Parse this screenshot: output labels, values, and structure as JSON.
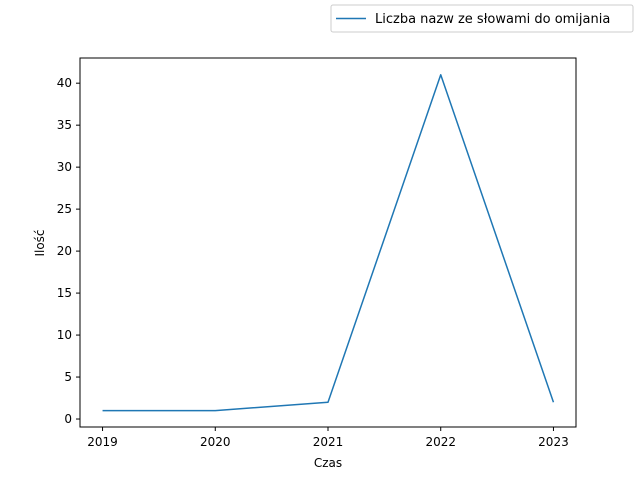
{
  "chart_data": {
    "type": "line",
    "title": "",
    "xlabel": "Czas",
    "ylabel": "Ilość",
    "x": [
      2019,
      2020,
      2021,
      2022,
      2023
    ],
    "series": [
      {
        "name": "Liczba nazw ze słowami do omijania",
        "values": [
          1,
          1,
          2,
          41,
          2
        ],
        "color": "#1f77b4"
      }
    ],
    "xticks": [
      "2019",
      "2020",
      "2021",
      "2022",
      "2023"
    ],
    "yticks": [
      "0",
      "5",
      "10",
      "15",
      "20",
      "25",
      "30",
      "35",
      "40"
    ],
    "xlim": [
      2018.8,
      2023.2
    ],
    "ylim": [
      -0.95,
      43.0
    ],
    "grid": false,
    "legend_position": "upper-right-outside"
  }
}
